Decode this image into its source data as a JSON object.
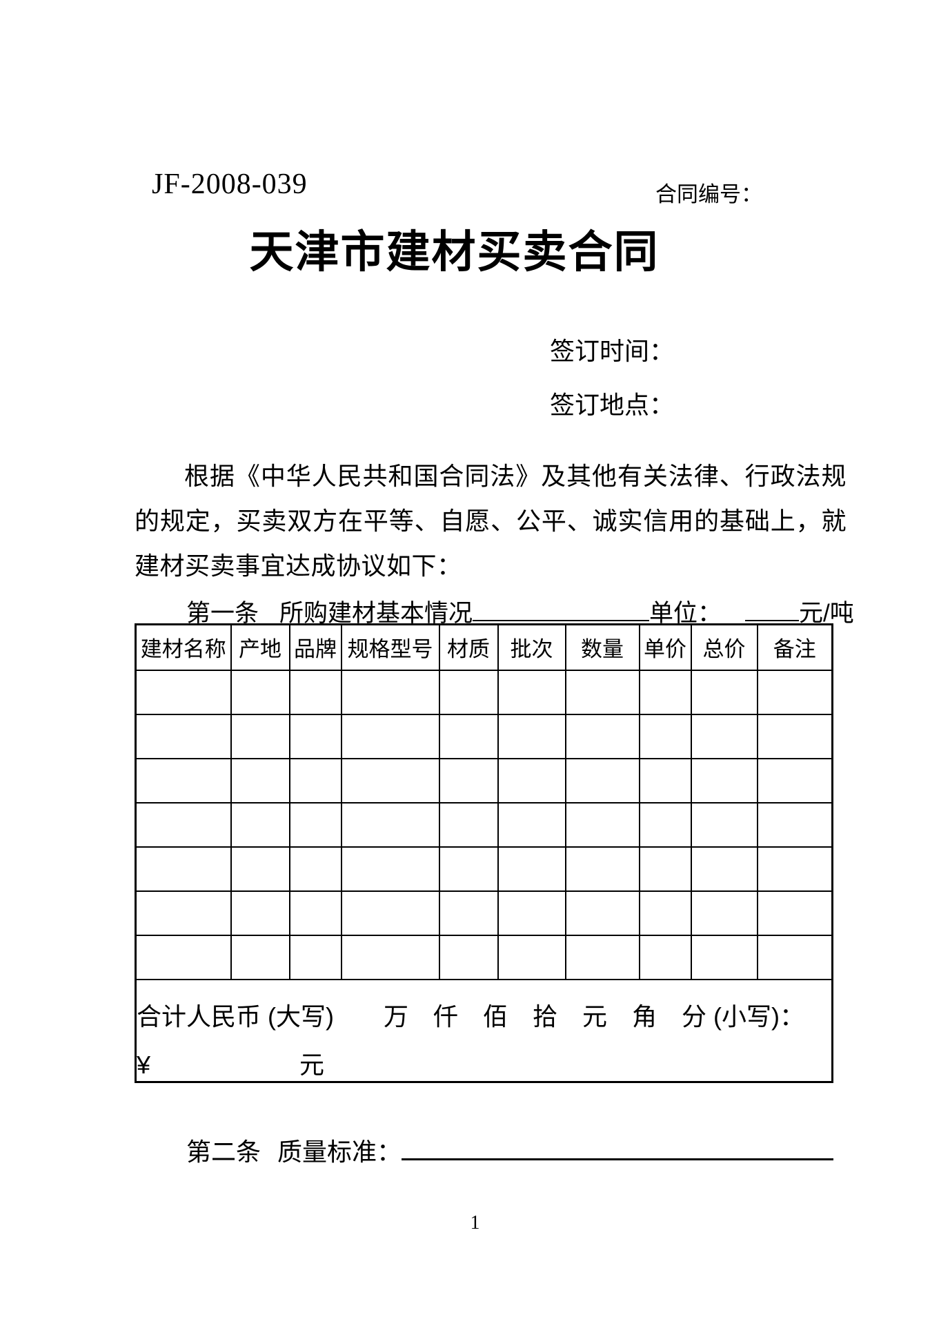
{
  "header": {
    "doc_code": "JF-2008-039",
    "contract_no_label": "合同编号："
  },
  "title": "天津市建材买卖合同",
  "sign": {
    "time_label": "签订时间：",
    "place_label": "签订地点："
  },
  "intro": "根据《中华人民共和国合同法》及其他有关法律、行政法规的规定，买卖双方在平等、自愿、公平、诚实信用的基础上，就建材买卖事宜达成协议如下：",
  "article1": {
    "label": "第一条",
    "text": "所购建材基本情况",
    "unit_label": "单位：",
    "unit_suffix": "元/吨"
  },
  "table": {
    "headers": [
      "建材名称",
      "产地",
      "品牌",
      "规格型号",
      "材质",
      "批次",
      "数量",
      "单价",
      "总价",
      "备注"
    ],
    "empty_rows": 7,
    "total_line1": "合计人民币 (大写)　　万　仟　佰　拾　元　角　分 (小写)：",
    "total_line2": "¥　　　　　　元"
  },
  "article2": {
    "label": "第二条",
    "text": "质量标准："
  },
  "page_number": "1"
}
